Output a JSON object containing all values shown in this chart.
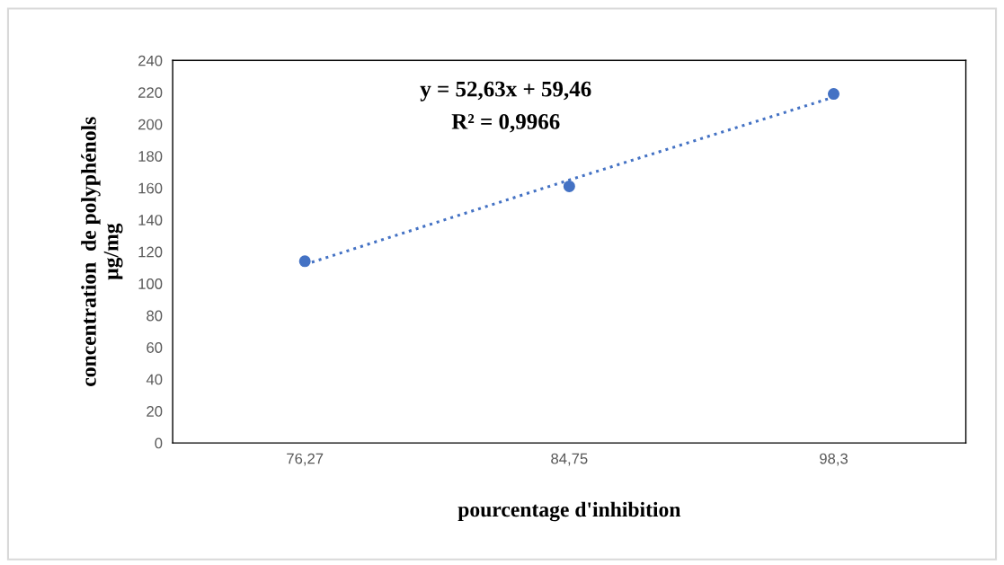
{
  "chart_data": {
    "type": "scatter",
    "xlabel": "pourcentage d'inhibition",
    "ylabel": "concentration  de polyphénols\nµg/mg",
    "categories": [
      "76,27",
      "84,75",
      "98,3"
    ],
    "series": [
      {
        "color": "#4472c4",
        "marker": "circle",
        "values": [
          114,
          161,
          219
        ]
      },
      {
        "type": "line",
        "color": "#4472c4",
        "line_style": "dotted",
        "marker": "none",
        "values": [
          112,
          165,
          217
        ]
      }
    ],
    "ylim": [
      0,
      240
    ],
    "yticks": [
      0,
      20,
      40,
      60,
      80,
      100,
      120,
      140,
      160,
      180,
      200,
      220,
      240
    ],
    "annotations": [
      "y = 52,63x + 59,46",
      "R² = 0,9966"
    ]
  }
}
